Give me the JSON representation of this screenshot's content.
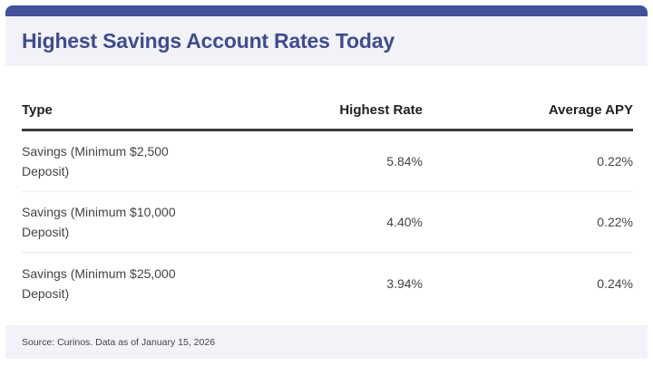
{
  "header": {
    "title": "Highest Savings Account Rates Today",
    "accent_color": "#43509a"
  },
  "table": {
    "columns": [
      "Type",
      "Highest Rate",
      "Average APY"
    ],
    "rows": [
      {
        "type": "Savings (Minimum $2,500 Deposit)",
        "highest_rate": "5.84%",
        "average_apy": "0.22%"
      },
      {
        "type": "Savings (Minimum $10,000 Deposit)",
        "highest_rate": "4.40%",
        "average_apy": "0.22%"
      },
      {
        "type": "Savings (Minimum $25,000 Deposit)",
        "highest_rate": "3.94%",
        "average_apy": "0.24%"
      }
    ]
  },
  "footer": {
    "source": "Source: Curinos. Data as of January 15, 2026"
  }
}
